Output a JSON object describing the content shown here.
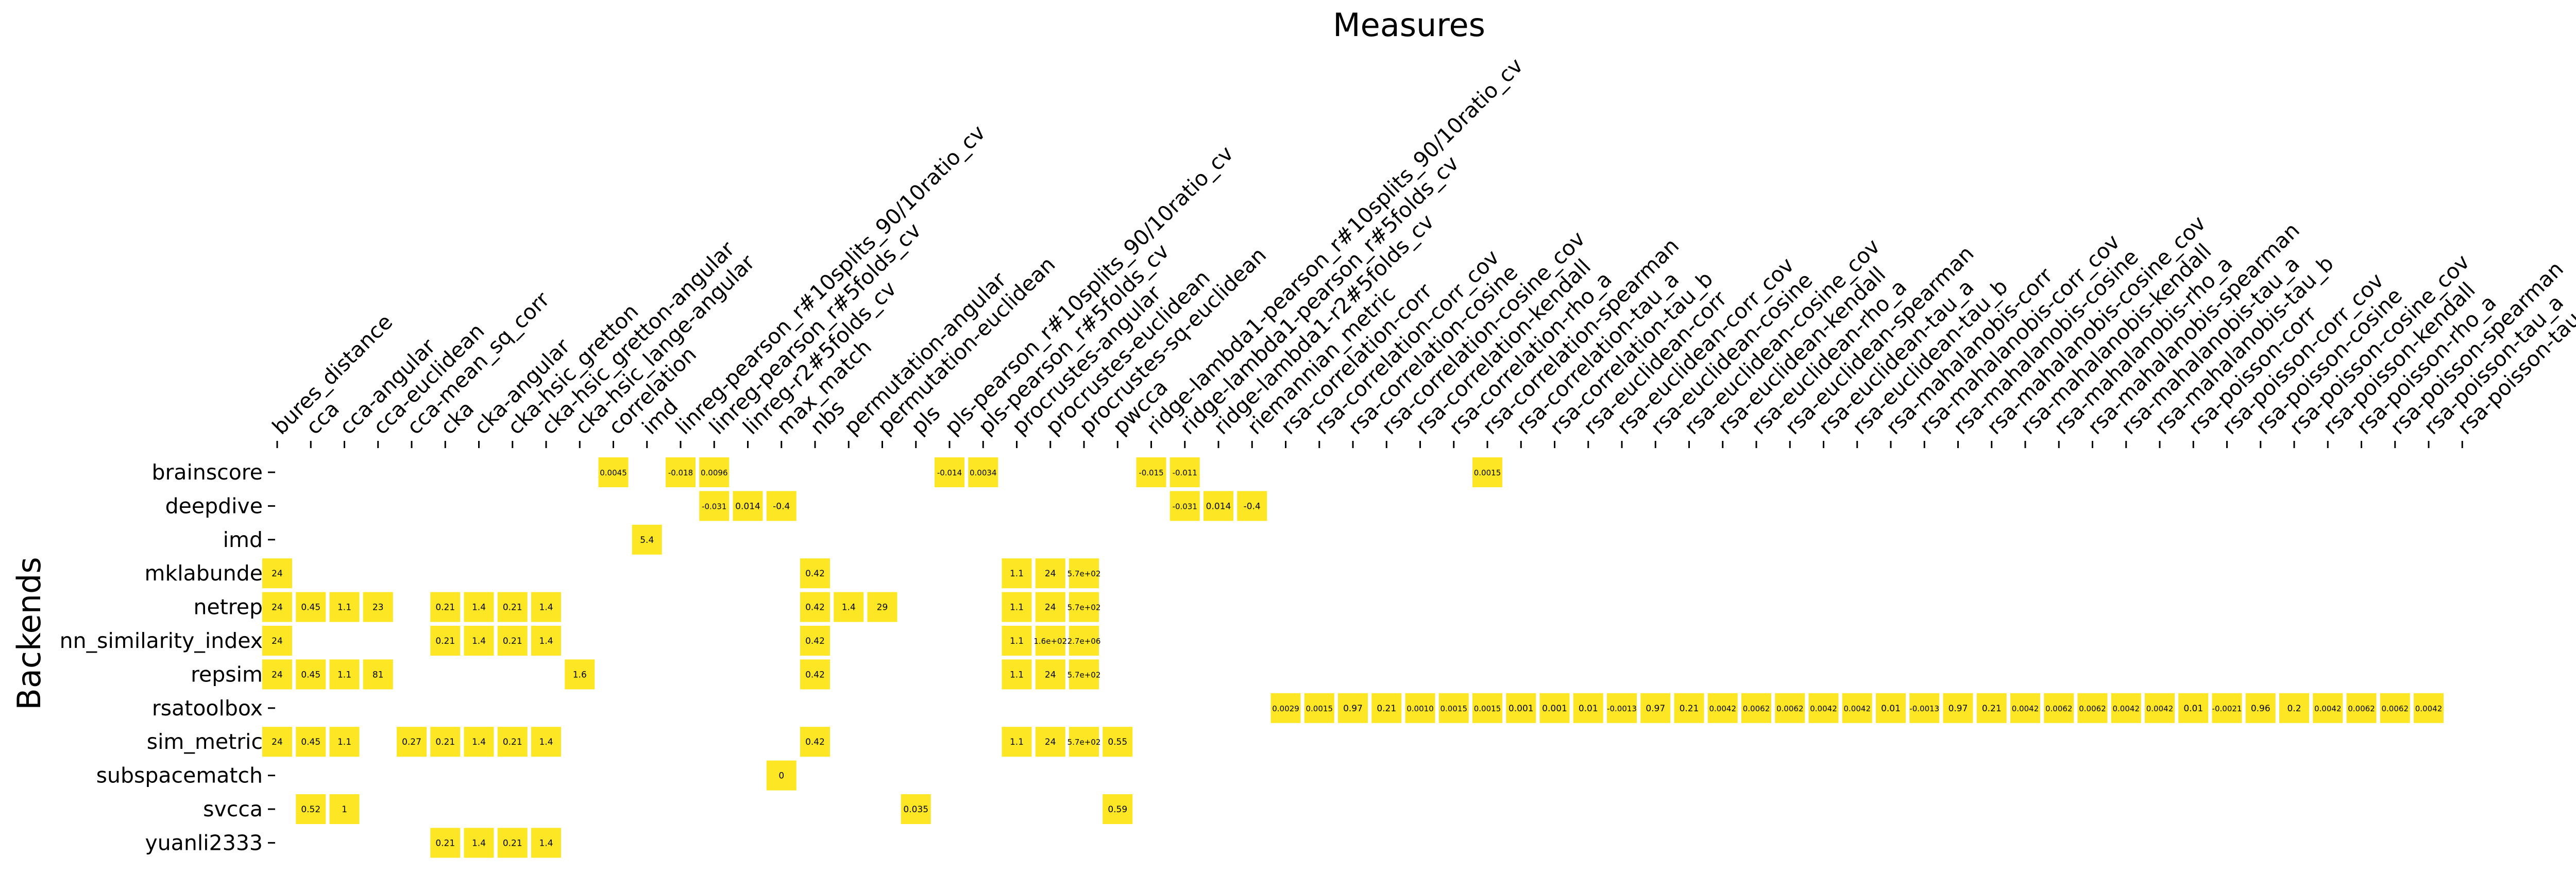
{
  "chart_data": {
    "type": "heatmap",
    "title": "Measures",
    "xlabel": "",
    "ylabel": "Backends",
    "cell_color": "#fde725",
    "x": [
      "bures_distance",
      "cca",
      "cca-angular",
      "cca-euclidean",
      "cca-mean_sq_corr",
      "cka",
      "cka-angular",
      "cka-hsic_gretton",
      "cka-hsic_gretton-angular",
      "cka-hsic_lange-angular",
      "correlation",
      "imd",
      "linreg-pearson_r#10splits_90/10ratio_cv",
      "linreg-pearson_r#5folds_cv",
      "linreg-r2#5folds_cv",
      "max_match",
      "nbs",
      "permutation-angular",
      "permutation-euclidean",
      "pls",
      "pls-pearson_r#10splits_90/10ratio_cv",
      "pls-pearson_r#5folds_cv",
      "procrustes-angular",
      "procrustes-euclidean",
      "procrustes-sq-euclidean",
      "pwcca",
      "ridge-lambda1-pearson_r#10splits_90/10ratio_cv",
      "ridge-lambda1-pearson_r#5folds_cv",
      "ridge-lambda1-r2#5folds_cv",
      "riemannian_metric",
      "rsa-correlation-corr",
      "rsa-correlation-corr_cov",
      "rsa-correlation-cosine",
      "rsa-correlation-cosine_cov",
      "rsa-correlation-kendall",
      "rsa-correlation-rho_a",
      "rsa-correlation-spearman",
      "rsa-correlation-tau_a",
      "rsa-correlation-tau_b",
      "rsa-euclidean-corr",
      "rsa-euclidean-corr_cov",
      "rsa-euclidean-cosine",
      "rsa-euclidean-cosine_cov",
      "rsa-euclidean-kendall",
      "rsa-euclidean-rho_a",
      "rsa-euclidean-spearman",
      "rsa-euclidean-tau_a",
      "rsa-euclidean-tau_b",
      "rsa-mahalanobis-corr",
      "rsa-mahalanobis-corr_cov",
      "rsa-mahalanobis-cosine",
      "rsa-mahalanobis-cosine_cov",
      "rsa-mahalanobis-kendall",
      "rsa-mahalanobis-rho_a",
      "rsa-mahalanobis-spearman",
      "rsa-mahalanobis-tau_a",
      "rsa-mahalanobis-tau_b",
      "rsa-poisson-corr",
      "rsa-poisson-corr_cov",
      "rsa-poisson-cosine",
      "rsa-poisson-cosine_cov",
      "rsa-poisson-kendall",
      "rsa-poisson-rho_a",
      "rsa-poisson-spearman",
      "rsa-poisson-tau_a",
      "rsa-poisson-tau_b"
    ],
    "y": [
      "brainscore",
      "deepdive",
      "imd",
      "mklabunde",
      "netrep",
      "nn_similarity_index",
      "repsim",
      "rsatoolbox",
      "sim_metric",
      "subspacematch",
      "svcca",
      "yuanli2333"
    ],
    "cells": [
      {
        "row": "brainscore",
        "col": "correlation",
        "label": "0.0045"
      },
      {
        "row": "brainscore",
        "col": "linreg-pearson_r#10splits_90/10ratio_cv",
        "label": "-0.018"
      },
      {
        "row": "brainscore",
        "col": "linreg-pearson_r#5folds_cv",
        "label": "0.0096"
      },
      {
        "row": "brainscore",
        "col": "pls-pearson_r#10splits_90/10ratio_cv",
        "label": "-0.014"
      },
      {
        "row": "brainscore",
        "col": "pls-pearson_r#5folds_cv",
        "label": "0.0034"
      },
      {
        "row": "brainscore",
        "col": "ridge-lambda1-pearson_r#10splits_90/10ratio_cv",
        "label": "-0.015"
      },
      {
        "row": "brainscore",
        "col": "ridge-lambda1-pearson_r#5folds_cv",
        "label": "-0.011"
      },
      {
        "row": "brainscore",
        "col": "rsa-correlation-spearman",
        "label": "0.0015"
      },
      {
        "row": "deepdive",
        "col": "linreg-pearson_r#5folds_cv",
        "label": "-0.031"
      },
      {
        "row": "deepdive",
        "col": "linreg-r2#5folds_cv",
        "label": "0.014"
      },
      {
        "row": "deepdive",
        "col": "max_match",
        "label": "-0.4"
      },
      {
        "row": "deepdive",
        "col": "ridge-lambda1-pearson_r#5folds_cv",
        "label": "-0.031"
      },
      {
        "row": "deepdive",
        "col": "ridge-lambda1-r2#5folds_cv",
        "label": "0.014"
      },
      {
        "row": "deepdive",
        "col": "riemannian_metric",
        "label": "-0.4"
      },
      {
        "row": "imd",
        "col": "imd",
        "label": "5.4"
      },
      {
        "row": "mklabunde",
        "col": "bures_distance",
        "label": "24"
      },
      {
        "row": "mklabunde",
        "col": "nbs",
        "label": "0.42"
      },
      {
        "row": "mklabunde",
        "col": "procrustes-angular",
        "label": "1.1"
      },
      {
        "row": "mklabunde",
        "col": "procrustes-euclidean",
        "label": "24"
      },
      {
        "row": "mklabunde",
        "col": "procrustes-sq-euclidean",
        "label": "5.7e+02"
      },
      {
        "row": "netrep",
        "col": "bures_distance",
        "label": "24"
      },
      {
        "row": "netrep",
        "col": "cca",
        "label": "0.45"
      },
      {
        "row": "netrep",
        "col": "cca-angular",
        "label": "1.1"
      },
      {
        "row": "netrep",
        "col": "cca-euclidean",
        "label": "23"
      },
      {
        "row": "netrep",
        "col": "cka",
        "label": "0.21"
      },
      {
        "row": "netrep",
        "col": "cka-angular",
        "label": "1.4"
      },
      {
        "row": "netrep",
        "col": "cka-hsic_gretton",
        "label": "0.21"
      },
      {
        "row": "netrep",
        "col": "cka-hsic_gretton-angular",
        "label": "1.4"
      },
      {
        "row": "netrep",
        "col": "nbs",
        "label": "0.42"
      },
      {
        "row": "netrep",
        "col": "permutation-angular",
        "label": "1.4"
      },
      {
        "row": "netrep",
        "col": "permutation-euclidean",
        "label": "29"
      },
      {
        "row": "netrep",
        "col": "procrustes-angular",
        "label": "1.1"
      },
      {
        "row": "netrep",
        "col": "procrustes-euclidean",
        "label": "24"
      },
      {
        "row": "netrep",
        "col": "procrustes-sq-euclidean",
        "label": "5.7e+02"
      },
      {
        "row": "nn_similarity_index",
        "col": "bures_distance",
        "label": "24"
      },
      {
        "row": "nn_similarity_index",
        "col": "cka",
        "label": "0.21"
      },
      {
        "row": "nn_similarity_index",
        "col": "cka-angular",
        "label": "1.4"
      },
      {
        "row": "nn_similarity_index",
        "col": "cka-hsic_gretton",
        "label": "0.21"
      },
      {
        "row": "nn_similarity_index",
        "col": "cka-hsic_gretton-angular",
        "label": "1.4"
      },
      {
        "row": "nn_similarity_index",
        "col": "nbs",
        "label": "0.42"
      },
      {
        "row": "nn_similarity_index",
        "col": "procrustes-angular",
        "label": "1.1"
      },
      {
        "row": "nn_similarity_index",
        "col": "procrustes-euclidean",
        "label": "1.6e+02"
      },
      {
        "row": "nn_similarity_index",
        "col": "procrustes-sq-euclidean",
        "label": "2.7e+06"
      },
      {
        "row": "repsim",
        "col": "bures_distance",
        "label": "24"
      },
      {
        "row": "repsim",
        "col": "cca",
        "label": "0.45"
      },
      {
        "row": "repsim",
        "col": "cca-angular",
        "label": "1.1"
      },
      {
        "row": "repsim",
        "col": "cca-euclidean",
        "label": "81"
      },
      {
        "row": "repsim",
        "col": "cka-hsic_lange-angular",
        "label": "1.6"
      },
      {
        "row": "repsim",
        "col": "nbs",
        "label": "0.42"
      },
      {
        "row": "repsim",
        "col": "procrustes-angular",
        "label": "1.1"
      },
      {
        "row": "repsim",
        "col": "procrustes-euclidean",
        "label": "24"
      },
      {
        "row": "repsim",
        "col": "procrustes-sq-euclidean",
        "label": "5.7e+02"
      },
      {
        "row": "rsatoolbox",
        "col": "rsa-correlation-corr",
        "label": "0.0029"
      },
      {
        "row": "rsatoolbox",
        "col": "rsa-correlation-corr_cov",
        "label": "0.0015"
      },
      {
        "row": "rsatoolbox",
        "col": "rsa-correlation-cosine",
        "label": "0.97"
      },
      {
        "row": "rsatoolbox",
        "col": "rsa-correlation-cosine_cov",
        "label": "0.21"
      },
      {
        "row": "rsatoolbox",
        "col": "rsa-correlation-kendall",
        "label": "0.0010"
      },
      {
        "row": "rsatoolbox",
        "col": "rsa-correlation-rho_a",
        "label": "0.0015"
      },
      {
        "row": "rsatoolbox",
        "col": "rsa-correlation-spearman",
        "label": "0.0015"
      },
      {
        "row": "rsatoolbox",
        "col": "rsa-correlation-tau_a",
        "label": "0.001"
      },
      {
        "row": "rsatoolbox",
        "col": "rsa-correlation-tau_b",
        "label": "0.001"
      },
      {
        "row": "rsatoolbox",
        "col": "rsa-euclidean-corr",
        "label": "0.01"
      },
      {
        "row": "rsatoolbox",
        "col": "rsa-euclidean-corr_cov",
        "label": "-0.0013"
      },
      {
        "row": "rsatoolbox",
        "col": "rsa-euclidean-cosine",
        "label": "0.97"
      },
      {
        "row": "rsatoolbox",
        "col": "rsa-euclidean-cosine_cov",
        "label": "0.21"
      },
      {
        "row": "rsatoolbox",
        "col": "rsa-euclidean-kendall",
        "label": "0.0042"
      },
      {
        "row": "rsatoolbox",
        "col": "rsa-euclidean-rho_a",
        "label": "0.0062"
      },
      {
        "row": "rsatoolbox",
        "col": "rsa-euclidean-spearman",
        "label": "0.0062"
      },
      {
        "row": "rsatoolbox",
        "col": "rsa-euclidean-tau_a",
        "label": "0.0042"
      },
      {
        "row": "rsatoolbox",
        "col": "rsa-euclidean-tau_b",
        "label": "0.0042"
      },
      {
        "row": "rsatoolbox",
        "col": "rsa-mahalanobis-corr",
        "label": "0.01"
      },
      {
        "row": "rsatoolbox",
        "col": "rsa-mahalanobis-corr_cov",
        "label": "-0.0013"
      },
      {
        "row": "rsatoolbox",
        "col": "rsa-mahalanobis-cosine",
        "label": "0.97"
      },
      {
        "row": "rsatoolbox",
        "col": "rsa-mahalanobis-cosine_cov",
        "label": "0.21"
      },
      {
        "row": "rsatoolbox",
        "col": "rsa-mahalanobis-kendall",
        "label": "0.0042"
      },
      {
        "row": "rsatoolbox",
        "col": "rsa-mahalanobis-rho_a",
        "label": "0.0062"
      },
      {
        "row": "rsatoolbox",
        "col": "rsa-mahalanobis-spearman",
        "label": "0.0062"
      },
      {
        "row": "rsatoolbox",
        "col": "rsa-mahalanobis-tau_a",
        "label": "0.0042"
      },
      {
        "row": "rsatoolbox",
        "col": "rsa-mahalanobis-tau_b",
        "label": "0.0042"
      },
      {
        "row": "rsatoolbox",
        "col": "rsa-poisson-corr",
        "label": "0.01"
      },
      {
        "row": "rsatoolbox",
        "col": "rsa-poisson-corr_cov",
        "label": "-0.0021"
      },
      {
        "row": "rsatoolbox",
        "col": "rsa-poisson-cosine",
        "label": "0.96"
      },
      {
        "row": "rsatoolbox",
        "col": "rsa-poisson-cosine_cov",
        "label": "0.2"
      },
      {
        "row": "rsatoolbox",
        "col": "rsa-poisson-kendall",
        "label": "0.0042"
      },
      {
        "row": "rsatoolbox",
        "col": "rsa-poisson-rho_a",
        "label": "0.0062"
      },
      {
        "row": "rsatoolbox",
        "col": "rsa-poisson-spearman",
        "label": "0.0062"
      },
      {
        "row": "rsatoolbox",
        "col": "rsa-poisson-tau_a",
        "label": "0.0042"
      },
      {
        "row": "sim_metric",
        "col": "bures_distance",
        "label": "24"
      },
      {
        "row": "sim_metric",
        "col": "cca",
        "label": "0.45"
      },
      {
        "row": "sim_metric",
        "col": "cca-angular",
        "label": "1.1"
      },
      {
        "row": "sim_metric",
        "col": "cca-mean_sq_corr",
        "label": "0.27"
      },
      {
        "row": "sim_metric",
        "col": "cka",
        "label": "0.21"
      },
      {
        "row": "sim_metric",
        "col": "cka-angular",
        "label": "1.4"
      },
      {
        "row": "sim_metric",
        "col": "cka-hsic_gretton",
        "label": "0.21"
      },
      {
        "row": "sim_metric",
        "col": "cka-hsic_gretton-angular",
        "label": "1.4"
      },
      {
        "row": "sim_metric",
        "col": "nbs",
        "label": "0.42"
      },
      {
        "row": "sim_metric",
        "col": "procrustes-angular",
        "label": "1.1"
      },
      {
        "row": "sim_metric",
        "col": "procrustes-euclidean",
        "label": "24"
      },
      {
        "row": "sim_metric",
        "col": "procrustes-sq-euclidean",
        "label": "5.7e+02"
      },
      {
        "row": "sim_metric",
        "col": "pwcca",
        "label": "0.55"
      },
      {
        "row": "subspacematch",
        "col": "max_match",
        "label": "0"
      },
      {
        "row": "svcca",
        "col": "cca",
        "label": "0.52"
      },
      {
        "row": "svcca",
        "col": "cca-angular",
        "label": "1"
      },
      {
        "row": "svcca",
        "col": "pls",
        "label": "0.035"
      },
      {
        "row": "svcca",
        "col": "pwcca",
        "label": "0.59"
      },
      {
        "row": "yuanli2333",
        "col": "cka",
        "label": "0.21"
      },
      {
        "row": "yuanli2333",
        "col": "cka-angular",
        "label": "1.4"
      },
      {
        "row": "yuanli2333",
        "col": "cka-hsic_gretton",
        "label": "0.21"
      },
      {
        "row": "yuanli2333",
        "col": "cka-hsic_gretton-angular",
        "label": "1.4"
      }
    ]
  }
}
